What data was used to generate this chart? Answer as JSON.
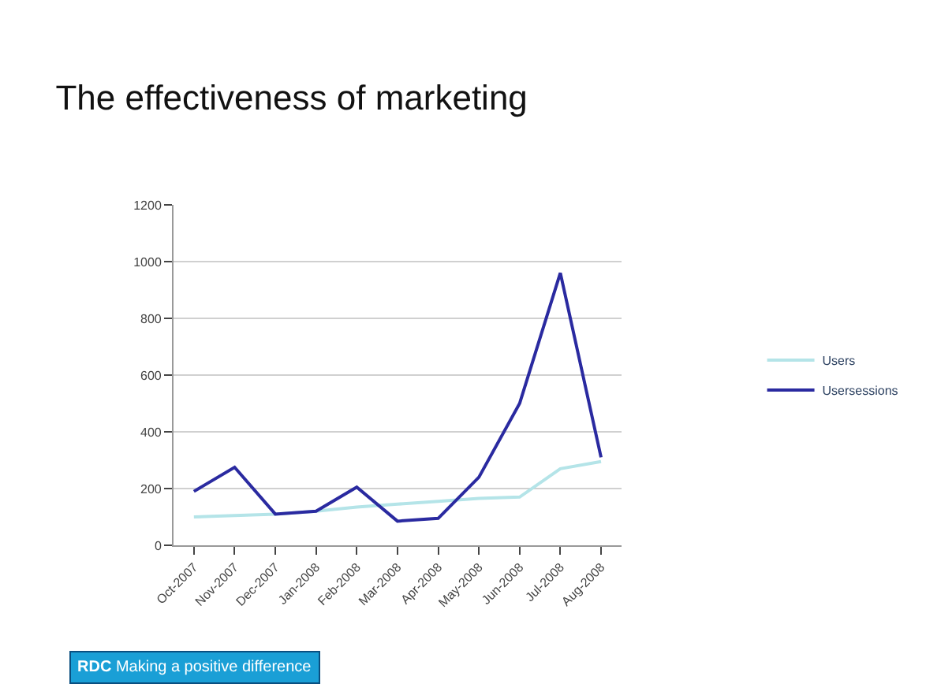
{
  "chart_data": {
    "type": "line",
    "title": "The effectiveness of marketing",
    "categories": [
      "Oct-2007",
      "Nov-2007",
      "Dec-2007",
      "Jan-2008",
      "Feb-2008",
      "Mar-2008",
      "Apr-2008",
      "May-2008",
      "Jun-2008",
      "Jul-2008",
      "Aug-2008"
    ],
    "series": [
      {
        "name": "Users",
        "color": "#b4e4e8",
        "values": [
          100,
          105,
          110,
          120,
          135,
          145,
          155,
          165,
          170,
          270,
          295
        ]
      },
      {
        "name": "Usersessions",
        "color": "#2a2aa0",
        "values": [
          190,
          275,
          110,
          120,
          205,
          85,
          95,
          240,
          500,
          960,
          310
        ]
      }
    ],
    "ylim": [
      0,
      1200
    ],
    "yticks": [
      0,
      200,
      400,
      600,
      800,
      1000,
      1200
    ],
    "grid": "y",
    "legend": "right",
    "marker": "none",
    "annotations": [
      "RDC Making a positive difference"
    ]
  }
}
